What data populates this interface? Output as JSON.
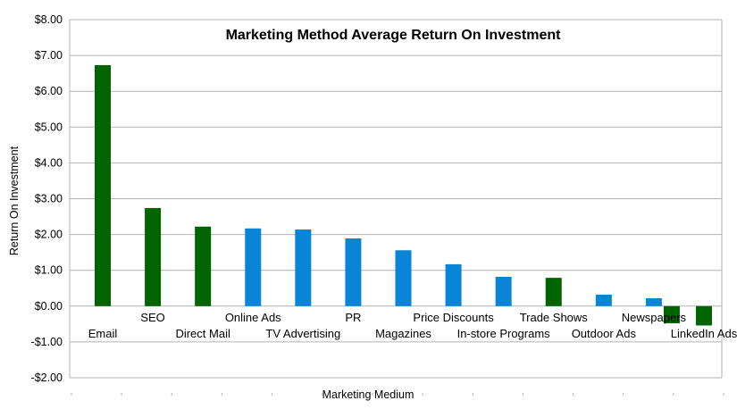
{
  "chart_data": {
    "type": "bar",
    "title": "Marketing Method Average Return On Investment",
    "xlabel": "Marketing Medium",
    "ylabel": "Return On Investment",
    "ylim": [
      -2,
      8
    ],
    "yticks": [
      8,
      7,
      6,
      5,
      4,
      3,
      2,
      1,
      0,
      -1,
      -2
    ],
    "ytick_labels": [
      "$8.00",
      "$7.00",
      "$6.00",
      "$5.00",
      "$4.00",
      "$3.00",
      "$2.00",
      "$1.00",
      "$0.00",
      "-$1.00",
      "-$2.00"
    ],
    "negative_tick_color": "#cc0000",
    "grid": true,
    "legend": "none",
    "categories": [
      "Email",
      "SEO",
      "Direct Mail",
      "Online Ads",
      "TV Advertising",
      "PR",
      "Magazines",
      "Price Discounts",
      "In-store Programs",
      "Trade Shows",
      "Outdoor Ads",
      "Newspapers",
      "LinkedIn Ads"
    ],
    "category_label_rows": [
      "low",
      "high",
      "low",
      "high",
      "low",
      "high",
      "low",
      "high",
      "low",
      "high",
      "low",
      "high",
      "low"
    ],
    "values": [
      6.73,
      2.74,
      2.22,
      2.17,
      2.14,
      1.89,
      1.56,
      1.17,
      0.82,
      0.79,
      0.32,
      0.22,
      -0.54
    ],
    "colors": [
      "#006400",
      "#006400",
      "#006400",
      "#0a84d6",
      "#0a84d6",
      "#0a84d6",
      "#0a84d6",
      "#0a84d6",
      "#0a84d6",
      "#006400",
      "#0a84d6",
      "#0a84d6",
      "#006400"
    ],
    "bar_offsets": [
      0,
      0,
      0,
      0,
      0,
      0,
      0,
      0,
      0,
      0,
      0,
      0,
      0
    ],
    "extra_bars": [
      {
        "category_index": 11,
        "value": -0.48,
        "color": "#006400"
      }
    ]
  }
}
